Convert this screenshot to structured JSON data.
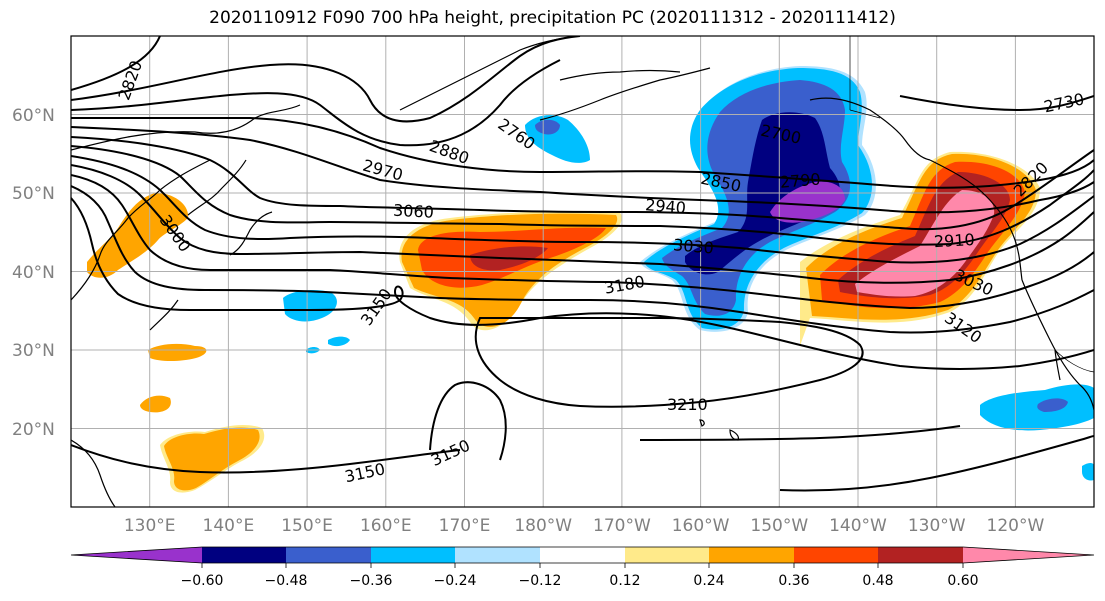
{
  "title": "2020110912 F090 700 hPa height, precipitation PC (2020111312 - 2020111412)",
  "lat_labels": [
    "60°N",
    "50°N",
    "40°N",
    "30°N",
    "20°N"
  ],
  "lon_labels": [
    "130°E",
    "140°E",
    "150°E",
    "160°E",
    "170°E",
    "180°W",
    "170°W",
    "160°W",
    "150°W",
    "140°W",
    "130°W",
    "120°W"
  ],
  "contour_labels": [
    "2820",
    "2760",
    "2880",
    "2970",
    "3060",
    "3000",
    "3150",
    "2700",
    "2790",
    "2850",
    "2940",
    "3030",
    "3180",
    "2730",
    "2820",
    "2910",
    "3030",
    "3120",
    "3210",
    "3150",
    "3150"
  ],
  "colorbar": {
    "tick_labels": [
      "−0.60",
      "−0.48",
      "−0.36",
      "−0.24",
      "−0.12",
      "0.12",
      "0.24",
      "0.36",
      "0.48",
      "0.60"
    ],
    "colors": [
      "#9932cc",
      "#000080",
      "#3a5fcd",
      "#00bfff",
      "#b0e2ff",
      "#ffffff",
      "#ffea8a",
      "#ffa500",
      "#ff4500",
      "#b22222",
      "#ff88aa"
    ]
  },
  "map": {
    "projection": "equirectangular",
    "lon_range": [
      120,
      250
    ],
    "lat_range": [
      10,
      70
    ]
  }
}
